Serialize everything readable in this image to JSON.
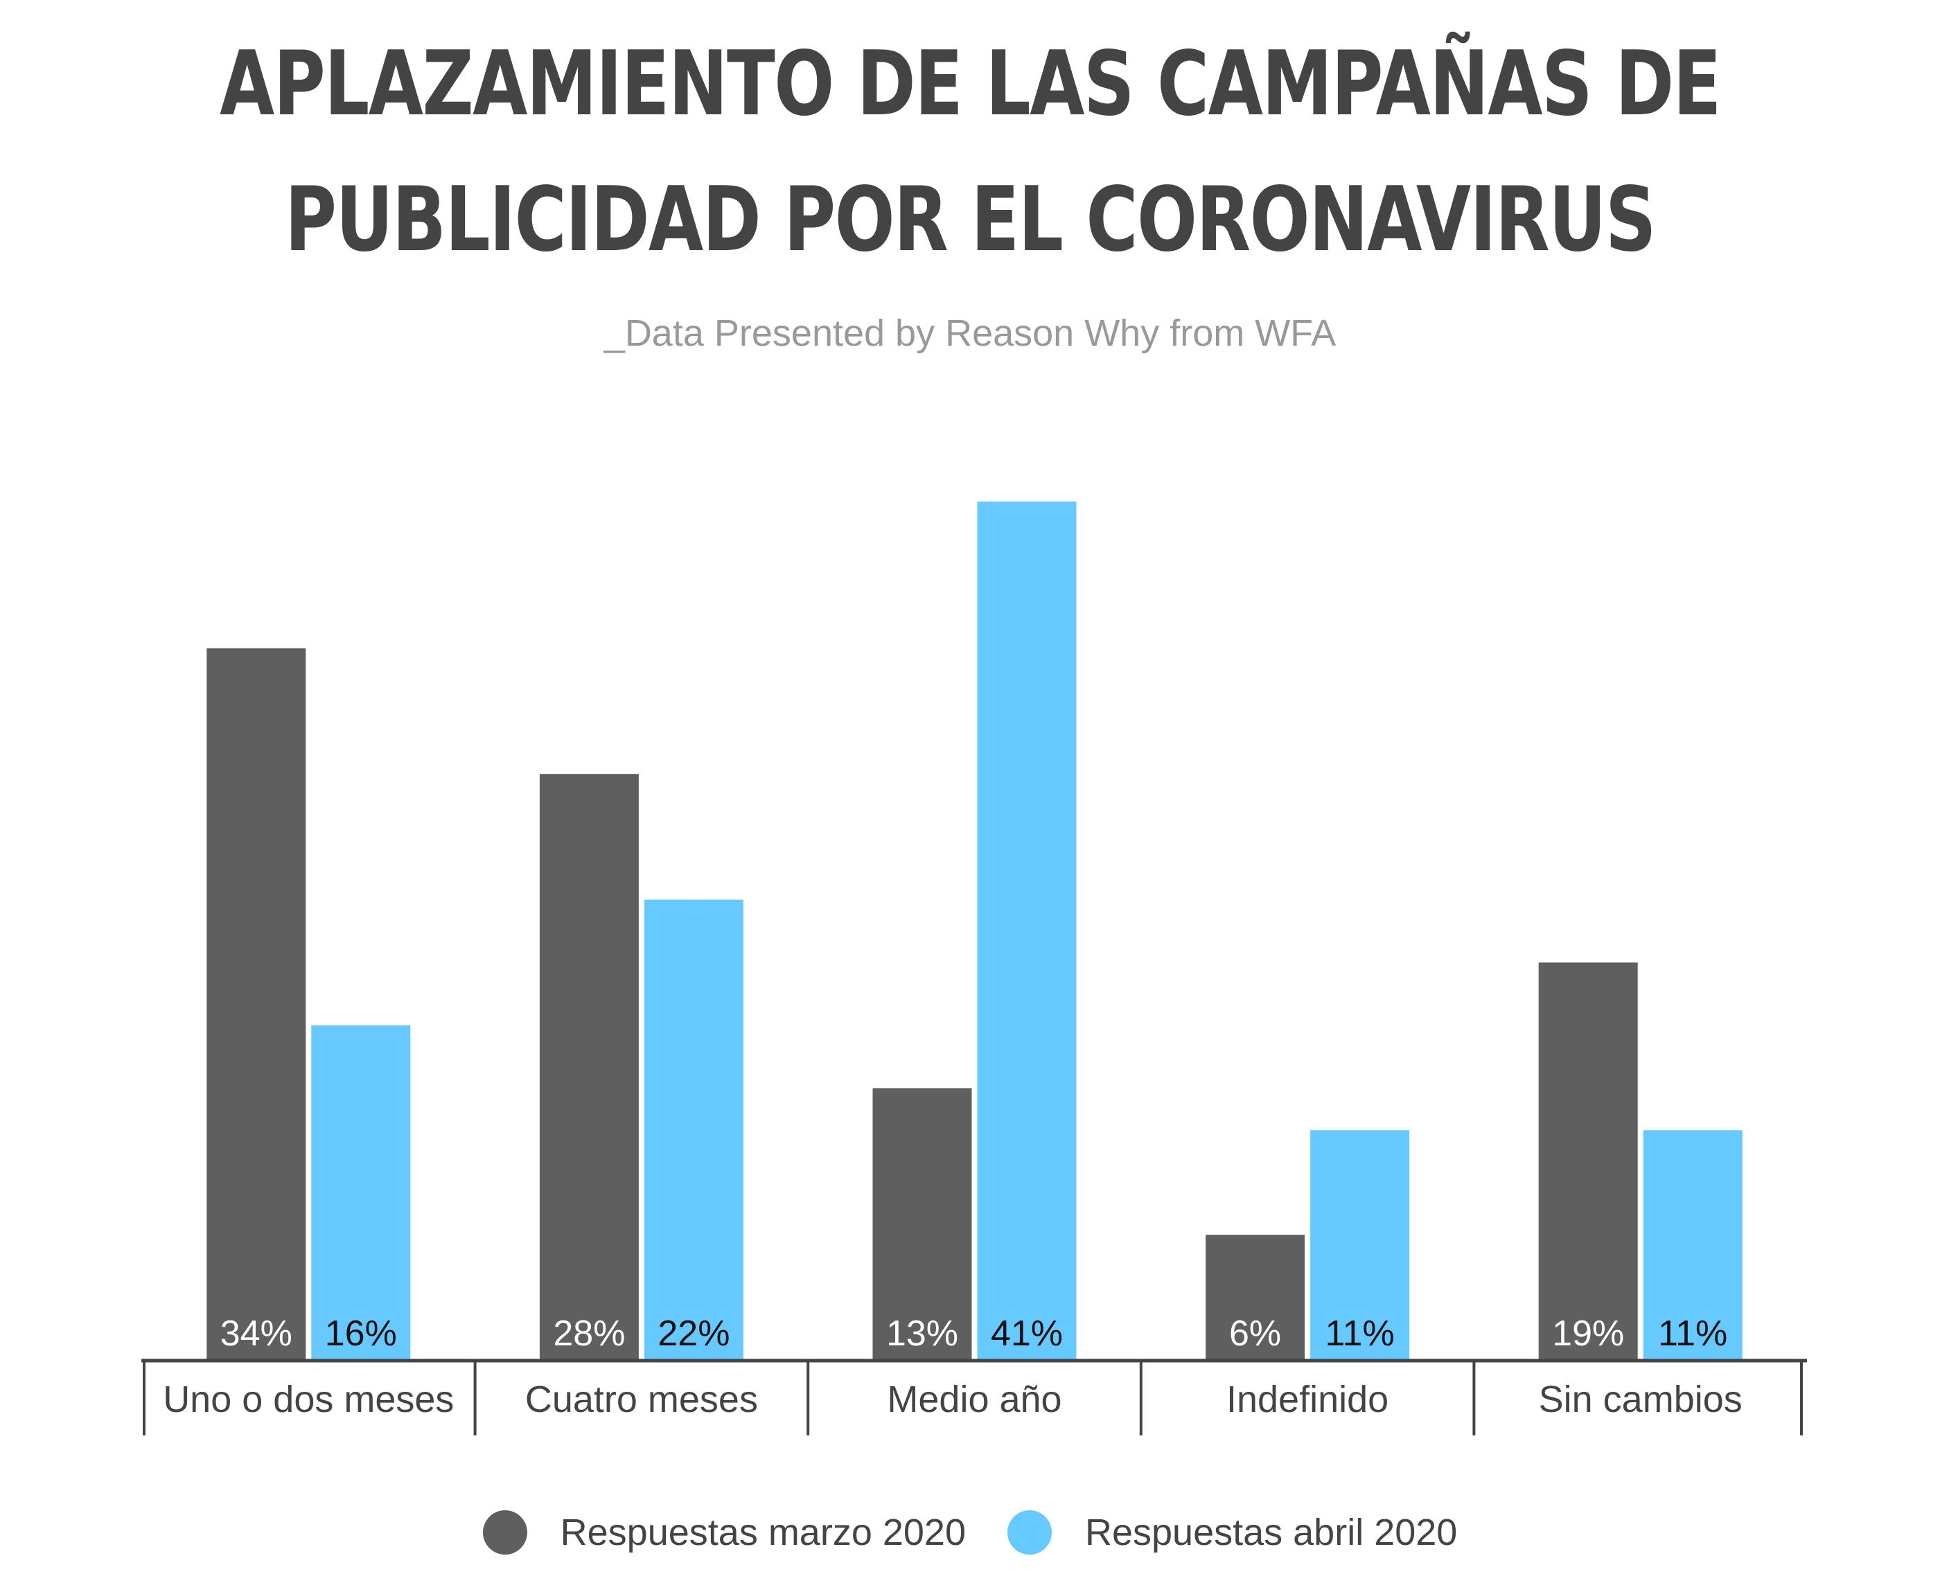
{
  "chart_data": {
    "type": "bar",
    "title_lines": [
      "APLAZAMIENTO DE LAS CAMPAÑAS DE",
      "PUBLICIDAD POR EL CORONAVIRUS"
    ],
    "subtitle": "_Data Presented by Reason Why from WFA",
    "categories": [
      "Uno o dos meses",
      "Cuatro meses",
      "Medio año",
      "Indefinido",
      "Sin cambios"
    ],
    "series": [
      {
        "name": "Respuestas marzo 2020",
        "color": "#5f5f5f",
        "values": [
          34,
          28,
          13,
          6,
          19
        ],
        "labels": [
          "34%",
          "28%",
          "13%",
          "6%",
          "19%"
        ]
      },
      {
        "name": "Respuestas abril 2020",
        "color": "#66c9ff",
        "values": [
          16,
          22,
          41,
          11,
          11
        ],
        "labels": [
          "16%",
          "22%",
          "41%",
          "11%",
          "11%"
        ]
      }
    ],
    "ylim": [
      0,
      41
    ],
    "grid": false,
    "legend_position": "bottom"
  }
}
